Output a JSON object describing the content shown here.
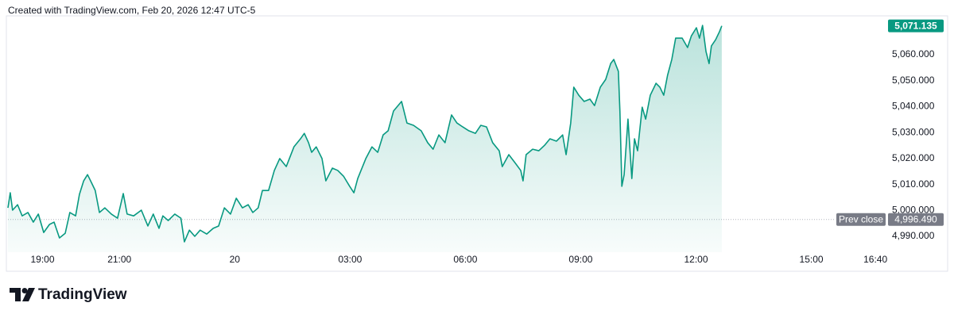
{
  "header": "Created with TradingView.com, Feb 20, 2026 12:47 UTC-5",
  "footer": "TradingView",
  "chart_data": {
    "type": "area",
    "color": "#089981",
    "x": [
      18.1,
      18.16,
      18.22,
      18.35,
      18.47,
      18.62,
      18.76,
      18.89,
      19.03,
      19.18,
      19.3,
      19.44,
      19.59,
      19.71,
      19.86,
      19.96,
      20.07,
      20.17,
      20.27,
      20.37,
      20.48,
      20.62,
      20.79,
      20.95,
      21.1,
      21.2,
      21.37,
      21.57,
      21.74,
      21.88,
      22.03,
      22.13,
      22.27,
      22.44,
      22.6,
      22.69,
      22.82,
      22.96,
      23.1,
      23.27,
      23.44,
      23.58,
      23.73,
      23.89,
      24.04,
      24.2,
      24.35,
      24.47,
      24.61,
      24.72,
      24.88,
      25.03,
      25.17,
      25.34,
      25.54,
      25.71,
      25.81,
      25.92,
      26.0,
      26.12,
      26.27,
      26.37,
      26.54,
      26.68,
      26.83,
      26.99,
      27.1,
      27.2,
      27.41,
      27.57,
      27.72,
      27.86,
      27.99,
      28.13,
      28.34,
      28.48,
      28.65,
      28.85,
      29.02,
      29.16,
      29.31,
      29.47,
      29.64,
      29.78,
      29.93,
      30.09,
      30.26,
      30.4,
      30.55,
      30.71,
      30.88,
      30.96,
      31.13,
      31.29,
      31.44,
      31.5,
      31.58,
      31.75,
      31.91,
      32.06,
      32.2,
      32.37,
      32.53,
      32.62,
      32.74,
      32.82,
      32.95,
      33.09,
      33.24,
      33.36,
      33.51,
      33.65,
      33.78,
      33.86,
      33.98,
      34.02,
      34.07,
      34.13,
      34.23,
      34.33,
      34.4,
      34.48,
      34.6,
      34.69,
      34.81,
      34.96,
      35.06,
      35.16,
      35.26,
      35.37,
      35.47,
      35.64,
      35.78,
      35.88,
      36.01,
      36.09,
      36.17,
      36.26,
      36.34,
      36.4,
      36.51,
      36.61,
      36.67
    ],
    "values": [
      5001.0,
      5006.8,
      5000.1,
      5002.2,
      4997.9,
      4999.2,
      4995.5,
      4998.6,
      4991.5,
      4994.6,
      4995.5,
      4989.4,
      4991.2,
      4999.2,
      4997.9,
      5006.2,
      5011.4,
      5013.8,
      5010.8,
      5007.7,
      4999.2,
      5001.0,
      4998.6,
      4997.0,
      5006.5,
      4998.6,
      4997.9,
      5000.1,
      4994.0,
      4998.6,
      4993.1,
      4997.9,
      4996.1,
      4998.6,
      4997.0,
      4987.9,
      4992.4,
      4990.0,
      4992.4,
      4990.9,
      4993.1,
      4994.0,
      5001.0,
      4998.6,
      5004.7,
      5001.0,
      5002.2,
      4999.2,
      5001.0,
      5007.7,
      5007.7,
      5015.4,
      5020.0,
      5016.9,
      5024.5,
      5027.6,
      5029.7,
      5026.1,
      5022.4,
      5024.5,
      5020.0,
      5011.4,
      5016.3,
      5015.4,
      5013.2,
      5009.3,
      5006.8,
      5012.3,
      5020.0,
      5024.5,
      5022.4,
      5029.1,
      5030.7,
      5038.3,
      5042.0,
      5033.7,
      5032.8,
      5030.7,
      5026.1,
      5023.6,
      5029.1,
      5026.1,
      5036.8,
      5033.7,
      5032.2,
      5030.7,
      5029.7,
      5032.8,
      5032.2,
      5026.1,
      5023.0,
      5016.9,
      5021.5,
      5018.4,
      5015.4,
      5011.4,
      5021.5,
      5023.6,
      5023.0,
      5025.1,
      5027.6,
      5026.7,
      5029.1,
      5021.5,
      5033.7,
      5047.5,
      5044.4,
      5042.0,
      5042.9,
      5040.4,
      5047.5,
      5050.5,
      5056.6,
      5058.2,
      5053.6,
      5038.3,
      5009.3,
      5013.8,
      5035.2,
      5012.3,
      5027.6,
      5023.0,
      5039.8,
      5035.2,
      5044.4,
      5049.0,
      5047.5,
      5044.4,
      5052.1,
      5058.2,
      5066.4,
      5066.4,
      5062.8,
      5067.3,
      5070.4,
      5066.4,
      5071.3,
      5061.2,
      5056.6,
      5063.4,
      5065.8,
      5068.9,
      5071.135
    ],
    "xlim": [
      18.1,
      40.85
    ],
    "xticks": [
      {
        "value": 19,
        "label": "19:00"
      },
      {
        "value": 21,
        "label": "21:00"
      },
      {
        "value": 24,
        "label": "20"
      },
      {
        "value": 27,
        "label": "03:00"
      },
      {
        "value": 30,
        "label": "06:00"
      },
      {
        "value": 33,
        "label": "09:00"
      },
      {
        "value": 36,
        "label": "12:00"
      },
      {
        "value": 39,
        "label": "15:00"
      },
      {
        "value": 40.667,
        "label": "16:40"
      }
    ],
    "ylim": [
      4983.9,
      5075.6
    ],
    "yticks": [
      {
        "value": 4990,
        "label": "4,990.000"
      },
      {
        "value": 5000,
        "label": "5,000.000"
      },
      {
        "value": 5010,
        "label": "5,010.000"
      },
      {
        "value": 5020,
        "label": "5,020.000"
      },
      {
        "value": 5030,
        "label": "5,030.000"
      },
      {
        "value": 5040,
        "label": "5,040.000"
      },
      {
        "value": 5050,
        "label": "5,050.000"
      },
      {
        "value": 5060,
        "label": "5,060.000"
      }
    ],
    "last_price": {
      "value": 5071.135,
      "label": "5,071.135"
    },
    "prev_close": {
      "name": "Prev close",
      "value": 4996.49,
      "label": "4,996.490"
    }
  }
}
